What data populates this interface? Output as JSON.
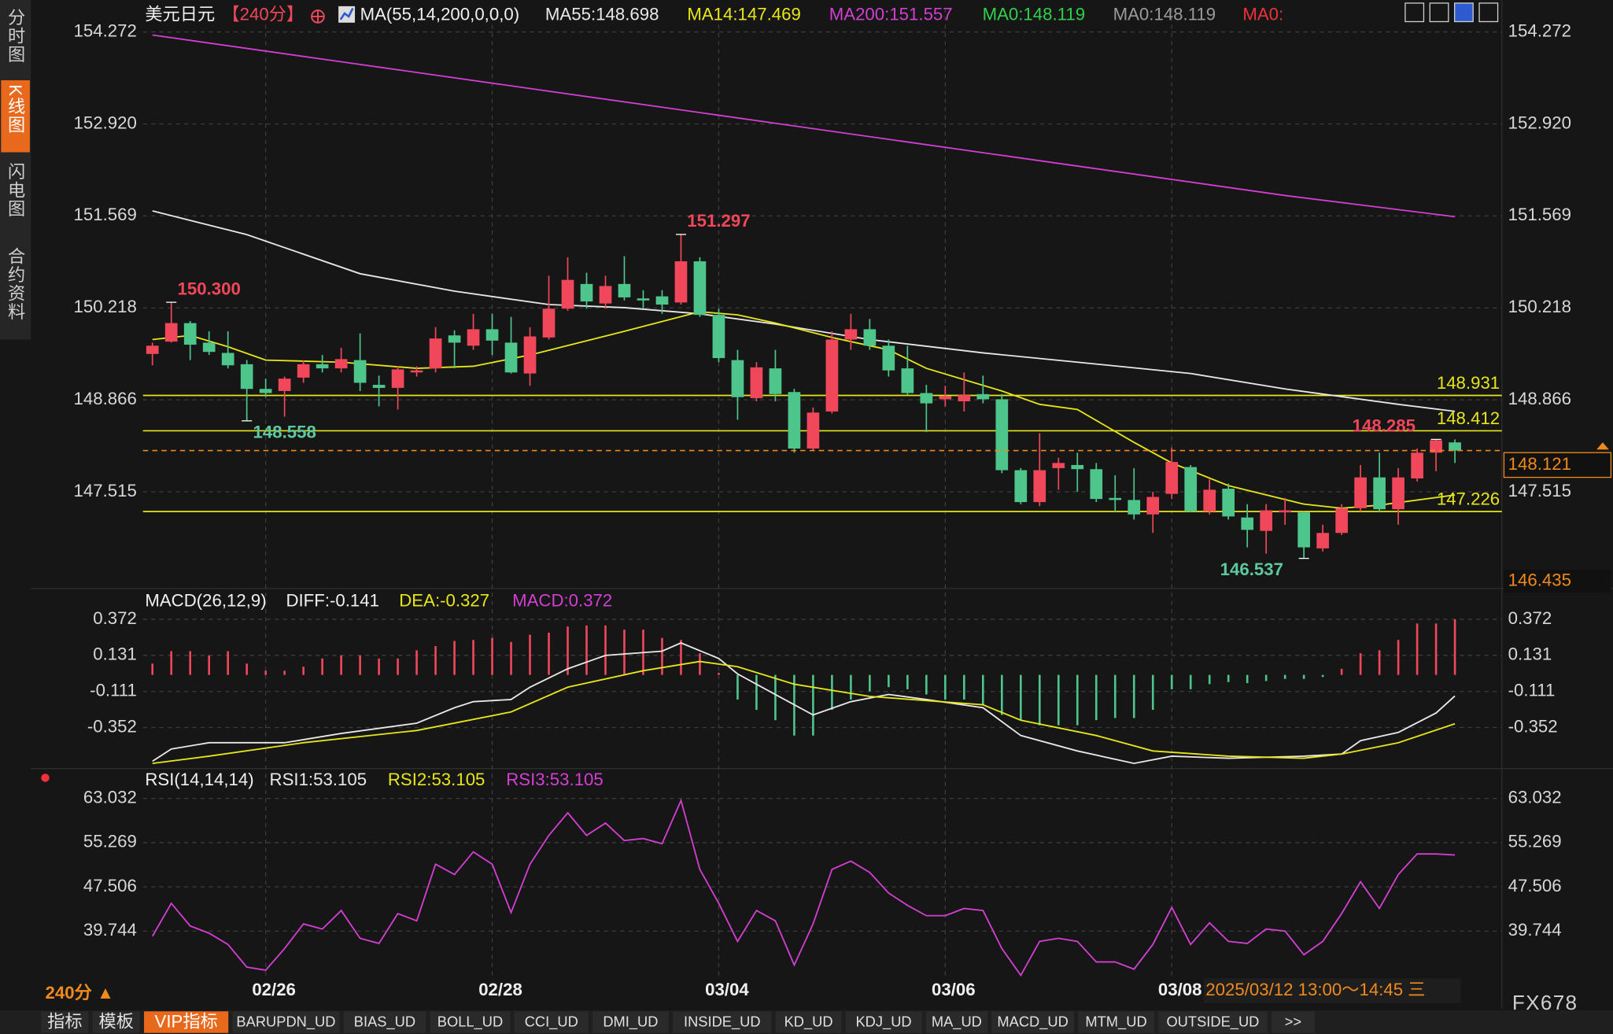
{
  "sidebar": {
    "tabs": [
      "分时图",
      "K线图",
      "闪电图",
      "合约资料"
    ]
  },
  "chart_data": [
    {
      "type": "candlestick",
      "title": "美元日元",
      "period": "【240分】",
      "indicator": "MA(55,14,200,0,0,0)",
      "up_color": "#f0475a",
      "down_color": "#4ec58b",
      "categories": [
        null,
        null,
        null,
        null,
        null,
        null,
        "02/26",
        null,
        null,
        null,
        null,
        null,
        null,
        null,
        null,
        null,
        null,
        null,
        "02/28",
        null,
        null,
        null,
        null,
        null,
        null,
        null,
        null,
        null,
        null,
        null,
        "03/04",
        null,
        null,
        null,
        null,
        null,
        null,
        null,
        null,
        null,
        null,
        null,
        "03/06",
        null,
        null,
        null,
        null,
        null,
        null,
        null,
        null,
        null,
        null,
        null,
        "03/08",
        null,
        null,
        null,
        null,
        null,
        null,
        null,
        null,
        null,
        null,
        null,
        null,
        null,
        null,
        null
      ],
      "open": [
        149.541,
        149.722,
        149.994,
        149.707,
        149.556,
        149.39,
        149.027,
        148.996,
        149.193,
        149.39,
        149.329,
        149.45,
        149.087,
        149.042,
        149.269,
        149.329,
        149.813,
        149.662,
        149.904,
        149.707,
        149.254,
        149.783,
        150.206,
        150.569,
        150.282,
        150.569,
        150.357,
        150.387,
        150.297,
        150.902,
        150.115,
        149.45,
        148.891,
        149.329,
        148.981,
        148.151,
        148.695,
        149.752,
        149.904,
        149.662,
        149.329,
        148.966,
        148.875,
        148.845,
        148.951,
        148.875,
        147.833,
        147.364,
        147.863,
        147.909,
        147.848,
        147.425,
        147.395,
        147.183,
        147.485,
        147.879,
        147.228,
        147.561,
        147.138,
        146.941,
        147.213,
        147.213,
        146.684,
        146.911,
        147.274,
        147.727,
        147.259,
        147.712,
        148.09,
        148.241
      ],
      "high": [
        149.707,
        150.3,
        150.025,
        149.873,
        149.873,
        149.45,
        149.178,
        149.208,
        149.45,
        149.526,
        149.631,
        149.843,
        149.223,
        149.359,
        149.359,
        149.934,
        149.888,
        150.13,
        150.13,
        150.085,
        149.934,
        150.69,
        150.962,
        150.735,
        150.69,
        150.977,
        150.478,
        150.478,
        151.297,
        150.962,
        150.206,
        149.601,
        149.42,
        149.601,
        149.027,
        148.754,
        149.873,
        150.13,
        150.055,
        149.752,
        149.662,
        149.087,
        149.072,
        149.269,
        149.223,
        148.951,
        147.863,
        148.377,
        148.015,
        148.09,
        147.939,
        147.758,
        147.863,
        147.516,
        148.166,
        147.909,
        147.712,
        147.637,
        147.334,
        147.334,
        147.425,
        147.228,
        147.032,
        147.334,
        147.909,
        148.09,
        147.863,
        148.151,
        148.285,
        148.285
      ],
      "low": [
        149.374,
        149.707,
        149.45,
        149.526,
        149.329,
        148.558,
        148.906,
        148.619,
        149.117,
        149.269,
        149.269,
        148.996,
        148.77,
        148.724,
        149.208,
        149.269,
        149.329,
        149.601,
        149.526,
        149.254,
        149.072,
        149.752,
        150.176,
        150.206,
        150.206,
        150.327,
        150.206,
        150.13,
        150.266,
        150.085,
        149.42,
        148.574,
        148.845,
        148.845,
        148.09,
        148.12,
        148.665,
        149.601,
        149.601,
        149.208,
        148.936,
        148.393,
        148.77,
        148.695,
        148.815,
        147.788,
        147.334,
        147.304,
        147.546,
        147.516,
        147.364,
        147.213,
        147.107,
        146.911,
        147.41,
        147.213,
        147.183,
        147.107,
        146.699,
        146.608,
        147.032,
        146.537,
        146.639,
        146.881,
        147.228,
        147.213,
        147.032,
        147.667,
        147.818,
        147.939
      ],
      "close": [
        149.662,
        149.994,
        149.677,
        149.571,
        149.374,
        149.027,
        148.966,
        149.178,
        149.39,
        149.329,
        149.465,
        149.117,
        149.042,
        149.314,
        149.299,
        149.768,
        149.707,
        149.904,
        149.737,
        149.269,
        149.798,
        150.206,
        150.629,
        150.312,
        150.539,
        150.372,
        150.327,
        150.266,
        150.902,
        150.115,
        149.48,
        148.906,
        149.344,
        148.951,
        148.151,
        148.68,
        149.752,
        149.904,
        149.662,
        149.299,
        148.966,
        148.815,
        148.921,
        148.936,
        148.875,
        147.833,
        147.364,
        147.833,
        147.939,
        147.848,
        147.41,
        147.395,
        147.183,
        147.44,
        147.954,
        147.228,
        147.546,
        147.153,
        146.956,
        147.243,
        147.243,
        146.699,
        146.911,
        147.274,
        147.727,
        147.259,
        147.727,
        148.09,
        148.272,
        148.121
      ],
      "series": [
        {
          "name": "MA55:148.698",
          "color": "#e8e8e8",
          "x": [
            0,
            5,
            11,
            16,
            21,
            25,
            29,
            33,
            38,
            44,
            49,
            55,
            60,
            66,
            69
          ],
          "values": [
            151.642,
            151.295,
            150.72,
            150.463,
            150.267,
            150.221,
            150.131,
            149.98,
            149.753,
            149.556,
            149.42,
            149.254,
            149.027,
            148.8,
            148.698
          ]
        },
        {
          "name": "MA14:147.469",
          "color": "#e6e61a",
          "x": [
            0,
            2,
            4,
            6,
            10,
            14,
            17,
            20,
            25,
            29,
            31,
            33,
            36,
            39,
            41,
            43,
            45,
            47,
            49,
            52,
            54,
            57,
            61,
            63,
            65,
            69
          ],
          "values": [
            149.753,
            149.813,
            149.647,
            149.45,
            149.42,
            149.329,
            149.36,
            149.526,
            149.874,
            150.161,
            150.115,
            149.995,
            149.783,
            149.602,
            149.329,
            149.163,
            148.997,
            148.8,
            148.725,
            148.241,
            147.939,
            147.606,
            147.334,
            147.274,
            147.319,
            147.469
          ]
        },
        {
          "name": "MA200:151.557",
          "color": "#d23fd2",
          "x": [
            0,
            10,
            20,
            30,
            40,
            50,
            60,
            69
          ],
          "values": [
            154.227,
            153.834,
            153.441,
            153.048,
            152.655,
            152.262,
            151.869,
            151.557
          ]
        }
      ],
      "legend_extra": [
        {
          "name": "MA0:148.119",
          "color": "#2fd04a"
        },
        {
          "name": "MA0:148.119",
          "color": "#9a9a9a"
        },
        {
          "name": "MA0:",
          "color": "#f0303a"
        }
      ],
      "hlines": [
        148.931,
        148.412,
        147.226
      ],
      "hline_color": "#e6e61a",
      "annotations": [
        {
          "x": 1,
          "value": 150.3,
          "label": "150.300",
          "color": "#f0475a"
        },
        {
          "x": 28,
          "value": 151.297,
          "label": "151.297",
          "color": "#f0475a"
        },
        {
          "x": 5,
          "value": 148.558,
          "label": "148.558",
          "color": "#5ec9a0"
        },
        {
          "x": 61,
          "value": 146.537,
          "label": "146.537",
          "color": "#5ec9a0"
        },
        {
          "x": 68,
          "value": 148.285,
          "label": "148.285",
          "color": "#f0475a"
        }
      ],
      "bottom_price": 146.435,
      "ylim": [
        146.155,
        154.62
      ],
      "yticks": [
        154.272,
        {
          "value": 152.92,
          "label": "152.920"
        },
        151.569,
        150.218,
        148.866,
        147.515
      ],
      "grid": true
    },
    {
      "type": "macd",
      "title": "MACD(26,12,9)",
      "hist_name": "MACD:0.372",
      "hist_color": "#d23fd2",
      "values": [
        0.076,
        0.159,
        0.159,
        0.131,
        0.159,
        0.076,
        0.028,
        0.028,
        0.055,
        0.11,
        0.131,
        0.131,
        0.11,
        0.11,
        0.165,
        0.193,
        0.227,
        0.234,
        0.248,
        0.221,
        0.269,
        0.283,
        0.324,
        0.331,
        0.331,
        0.303,
        0.303,
        0.248,
        0.234,
        0.145,
        0.014,
        -0.165,
        -0.234,
        -0.303,
        -0.406,
        -0.406,
        -0.234,
        -0.165,
        -0.11,
        -0.082,
        -0.096,
        -0.131,
        -0.165,
        -0.165,
        -0.2,
        -0.268,
        -0.303,
        -0.337,
        -0.337,
        -0.337,
        -0.303,
        -0.289,
        -0.289,
        -0.234,
        -0.096,
        -0.096,
        -0.062,
        -0.048,
        -0.055,
        -0.041,
        -0.027,
        -0.027,
        -0.014,
        0.041,
        0.145,
        0.165,
        0.234,
        0.344,
        0.344,
        0.372
      ],
      "series": [
        {
          "name": "DIFF:-0.141",
          "color": "#e8e8e8",
          "x": [
            0,
            1,
            3,
            5,
            7,
            10,
            14,
            16,
            17,
            19,
            20,
            22,
            24,
            27,
            28,
            30,
            31,
            33,
            35,
            37,
            39,
            41,
            44,
            46,
            49,
            52,
            54,
            57,
            61,
            63,
            64,
            66,
            68,
            69
          ],
          "values": [
            -0.578,
            -0.496,
            -0.454,
            -0.454,
            -0.454,
            -0.392,
            -0.323,
            -0.22,
            -0.179,
            -0.165,
            -0.082,
            0.041,
            0.131,
            0.159,
            0.214,
            0.11,
            0.007,
            -0.131,
            -0.268,
            -0.179,
            -0.131,
            -0.165,
            -0.22,
            -0.406,
            -0.509,
            -0.592,
            -0.544,
            -0.558,
            -0.544,
            -0.53,
            -0.44,
            -0.385,
            -0.255,
            -0.141
          ]
        },
        {
          "name": "DEA:-0.327",
          "color": "#e6e61a",
          "x": [
            0,
            3,
            8,
            14,
            19,
            22,
            26,
            29,
            31,
            34,
            38,
            44,
            46,
            50,
            53,
            57,
            61,
            63,
            66,
            69
          ],
          "values": [
            -0.592,
            -0.544,
            -0.454,
            -0.372,
            -0.248,
            -0.082,
            0.028,
            0.09,
            0.055,
            -0.062,
            -0.144,
            -0.2,
            -0.303,
            -0.406,
            -0.509,
            -0.544,
            -0.558,
            -0.53,
            -0.454,
            -0.327
          ]
        }
      ],
      "ylim": [
        -0.613,
        0.42
      ],
      "yticks": [
        0.372,
        0.131,
        -0.111,
        -0.352
      ]
    },
    {
      "type": "line",
      "title": "RSI(14,14,14)",
      "legend_extra": [
        {
          "name": "RSI1:53.105",
          "color": "#e8e8e8"
        },
        {
          "name": "RSI2:53.105",
          "color": "#e6e61a"
        }
      ],
      "series": [
        {
          "name": "RSI3:53.105",
          "color": "#d23fd2",
          "values": [
            38.841,
            44.618,
            40.646,
            39.383,
            37.397,
            33.425,
            32.883,
            36.675,
            41.007,
            40.105,
            43.354,
            38.48,
            37.577,
            42.813,
            41.549,
            51.478,
            49.673,
            53.644,
            51.478,
            42.993,
            51.478,
            56.533,
            60.505,
            56.533,
            58.699,
            55.63,
            55.991,
            55.089,
            62.671,
            50.575,
            44.618,
            37.938,
            43.354,
            41.549,
            33.786,
            41.007,
            50.575,
            52.02,
            50.034,
            46.423,
            44.257,
            42.452,
            42.452,
            43.715,
            43.354,
            36.675,
            31.981,
            37.938,
            38.48,
            37.938,
            34.328,
            34.328,
            33.064,
            37.397,
            43.896,
            37.397,
            41.188,
            37.938,
            37.577,
            40.105,
            39.744,
            35.591,
            37.938,
            42.813,
            48.409,
            43.715,
            49.673,
            53.283,
            53.283,
            53.105
          ]
        }
      ],
      "ylim": [
        31.62,
        64.48
      ],
      "yticks": [
        63.032,
        55.269,
        47.506,
        39.744
      ]
    }
  ],
  "footer": {
    "period": "240分 ▲",
    "time_range": "2025/03/12 13:00～14:45 三",
    "brand": "FX678"
  },
  "toolbar": {
    "tabs": [
      "指标",
      "模板",
      "VIP指标",
      "BARUPDN_UD",
      "BIAS_UD",
      "BOLL_UD",
      "CCI_UD",
      "DMI_UD",
      "INSIDE_UD",
      "KD_UD",
      "KDJ_UD",
      "MA_UD",
      "MACD_UD",
      "MTM_UD",
      "OUTSIDE_UD",
      ">>"
    ],
    "active": 2
  }
}
